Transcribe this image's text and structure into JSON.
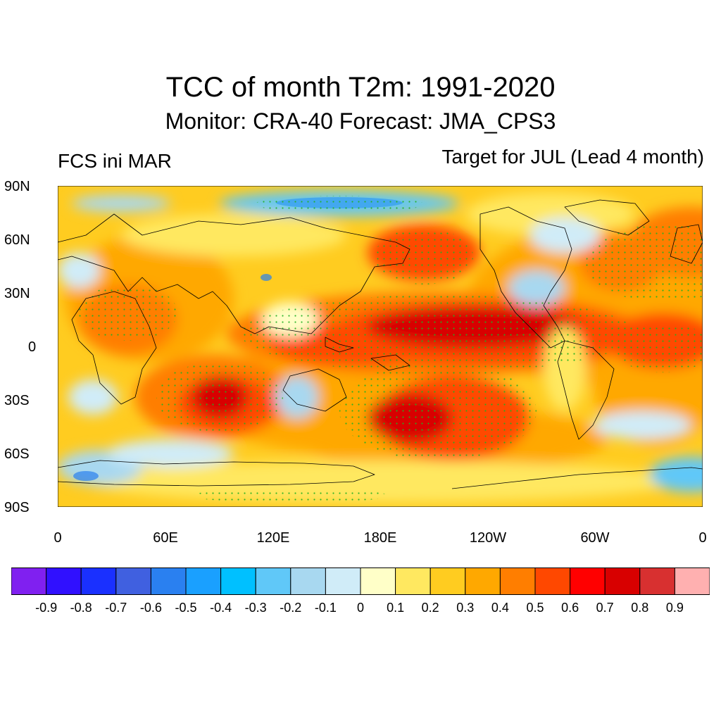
{
  "header": {
    "title": "TCC of month T2m: 1991-2020",
    "subtitle": "Monitor: CRA-40   Forecast: JMA_CPS3",
    "left_label": "FCS ini MAR",
    "right_label": "Target for JUL (Lead 4 month)"
  },
  "axes": {
    "lat_labels": [
      "90N",
      "60N",
      "30N",
      "0",
      "30S",
      "60S",
      "90S"
    ],
    "lon_labels": [
      "0",
      "60E",
      "120E",
      "180E",
      "120W",
      "60W",
      "0"
    ]
  },
  "colorbar": {
    "colors": [
      "#8020f0",
      "#3010ff",
      "#1a30ff",
      "#4060e0",
      "#2a80f0",
      "#1aa0ff",
      "#00c0ff",
      "#60c8f8",
      "#a8d8f0",
      "#d0ecf8",
      "#ffffc8",
      "#ffe860",
      "#ffcc20",
      "#ffa800",
      "#ff7e00",
      "#ff4800",
      "#ff0000",
      "#d80000",
      "#d83030",
      "#ffb0b0"
    ],
    "labels": [
      "-0.9",
      "-0.8",
      "-0.7",
      "-0.6",
      "-0.5",
      "-0.4",
      "-0.3",
      "-0.2",
      "-0.1",
      "0",
      "0.1",
      "0.2",
      "0.3",
      "0.4",
      "0.5",
      "0.6",
      "0.7",
      "0.8",
      "0.9"
    ]
  }
}
